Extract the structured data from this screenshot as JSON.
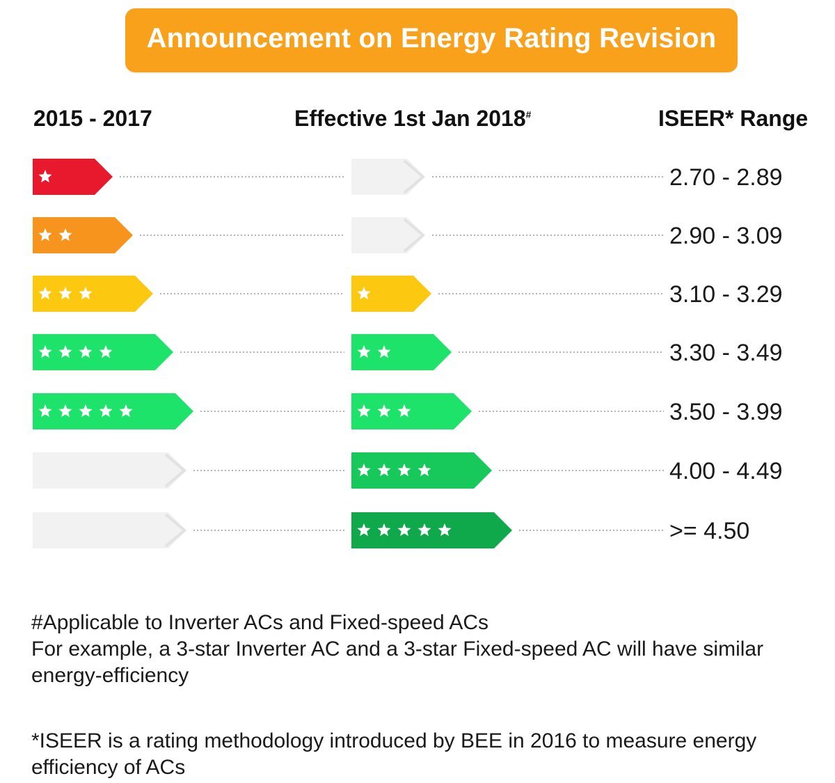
{
  "banner": {
    "title": "Announcement on Energy Rating Revision",
    "color": "#f9a11b"
  },
  "headers": {
    "old": "2015 - 2017",
    "new_prefix": "Effective 1st Jan 2018",
    "new_mark": "#",
    "range": "ISEER* Range"
  },
  "rows": [
    {
      "old_stars": 1,
      "old_color": "#e8192c",
      "new_stars": 0,
      "new_color": "#f2f2f2",
      "range": "2.70 - 2.89"
    },
    {
      "old_stars": 2,
      "old_color": "#f7941d",
      "new_stars": 0,
      "new_color": "#f2f2f2",
      "range": "2.90 - 3.09"
    },
    {
      "old_stars": 3,
      "old_color": "#fcc910",
      "new_stars": 1,
      "new_color": "#fcc910",
      "range": "3.10 - 3.29"
    },
    {
      "old_stars": 4,
      "old_color": "#1ee36b",
      "new_stars": 2,
      "new_color": "#1ee36b",
      "range": "3.30 - 3.49"
    },
    {
      "old_stars": 5,
      "old_color": "#1ee36b",
      "new_stars": 3,
      "new_color": "#1ee36b",
      "range": "3.50 - 3.99"
    },
    {
      "old_stars": 0,
      "old_color": "#f2f2f2",
      "new_stars": 4,
      "new_color": "#16c95a",
      "range": "4.00 - 4.49"
    },
    {
      "old_stars": 0,
      "old_color": "#f2f2f2",
      "new_stars": 5,
      "new_color": "#0fa84a",
      "range": ">= 4.50"
    }
  ],
  "footnotes": {
    "applicable_line1": "#Applicable to Inverter ACs and Fixed-speed ACs",
    "applicable_line2": "For example, a 3-star Inverter AC and a 3-star Fixed-speed AC will have similar energy-efficiency",
    "iseer": "*ISEER is a rating methodology introduced by BEE in 2016 to measure energy efficiency of ACs"
  }
}
